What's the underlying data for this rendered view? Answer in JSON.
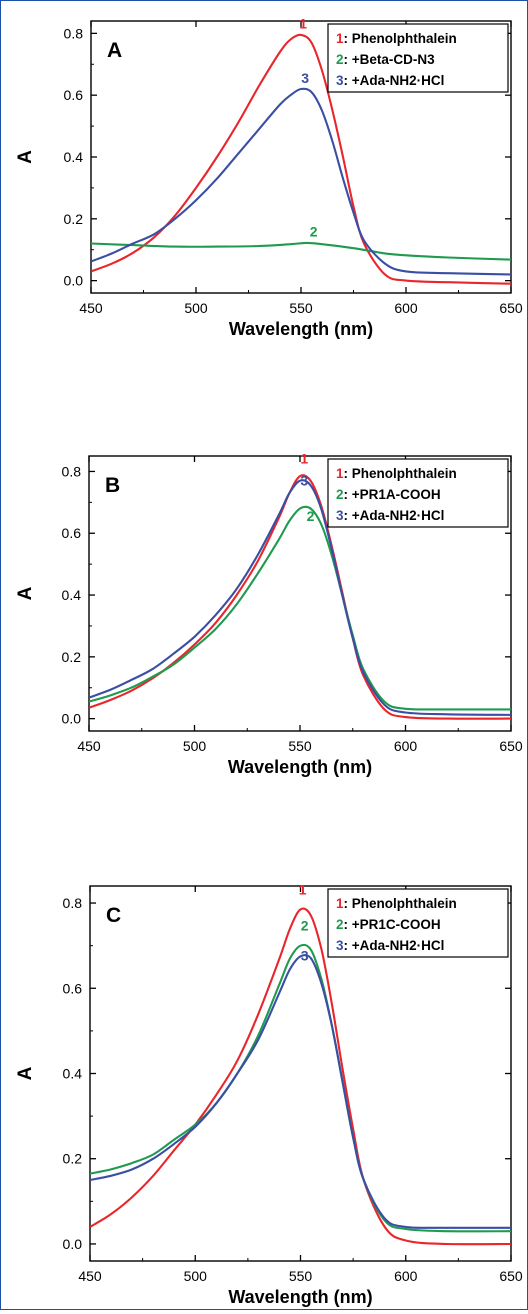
{
  "chart_data": [
    {
      "type": "line",
      "panel_label": "A",
      "xlabel": "Wavelength (nm)",
      "ylabel": "A",
      "xlim": [
        450,
        650
      ],
      "ylim": [
        -0.04,
        0.84
      ],
      "x_ticks": [
        450,
        500,
        550,
        600,
        650
      ],
      "y_ticks": [
        0.0,
        0.2,
        0.4,
        0.6,
        0.8
      ],
      "y_tick_labels": [
        "0.0",
        "0.2",
        "0.4",
        "0.6",
        "0.8"
      ],
      "legend_position": "top-right",
      "series": [
        {
          "name": "Phenolphthalein",
          "number": "1",
          "color": "#e8262b",
          "x": [
            450,
            460,
            470,
            480,
            490,
            500,
            510,
            520,
            530,
            540,
            545,
            550,
            555,
            560,
            565,
            570,
            575,
            580,
            590,
            600,
            620,
            650
          ],
          "y": [
            0.03,
            0.055,
            0.09,
            0.14,
            0.21,
            0.3,
            0.4,
            0.51,
            0.63,
            0.74,
            0.78,
            0.795,
            0.77,
            0.68,
            0.55,
            0.4,
            0.24,
            0.12,
            0.02,
            0.0,
            -0.005,
            -0.01
          ]
        },
        {
          "name": "+Beta-CD-N3",
          "number": "2",
          "color": "#1f9a4f",
          "x": [
            450,
            470,
            490,
            510,
            530,
            545,
            553,
            560,
            575,
            590,
            600,
            620,
            650
          ],
          "y": [
            0.12,
            0.115,
            0.11,
            0.11,
            0.112,
            0.118,
            0.122,
            0.118,
            0.105,
            0.088,
            0.082,
            0.075,
            0.068
          ]
        },
        {
          "name": "+Ada-NH2·HCl",
          "number": "3",
          "color": "#3a4fa3",
          "x": [
            450,
            460,
            470,
            480,
            490,
            500,
            510,
            520,
            530,
            540,
            545,
            550,
            555,
            560,
            565,
            570,
            575,
            580,
            590,
            600,
            620,
            650
          ],
          "y": [
            0.062,
            0.088,
            0.12,
            0.15,
            0.2,
            0.26,
            0.33,
            0.41,
            0.49,
            0.57,
            0.6,
            0.62,
            0.61,
            0.55,
            0.45,
            0.33,
            0.22,
            0.13,
            0.055,
            0.03,
            0.024,
            0.02
          ]
        }
      ],
      "curve_labels": [
        {
          "text": "1",
          "x": 551,
          "y": 0.815
        },
        {
          "text": "2",
          "x": 556,
          "y": 0.143
        },
        {
          "text": "3",
          "x": 552,
          "y": 0.64
        }
      ]
    },
    {
      "type": "line",
      "panel_label": "B",
      "xlabel": "Wavelength (nm)",
      "ylabel": "A",
      "xlim": [
        450,
        650
      ],
      "ylim": [
        -0.04,
        0.85
      ],
      "x_ticks": [
        450,
        500,
        550,
        600,
        650
      ],
      "y_ticks": [
        0.0,
        0.2,
        0.4,
        0.6,
        0.8
      ],
      "y_tick_labels": [
        "0.0",
        "0.2",
        "0.4",
        "0.6",
        "0.8"
      ],
      "legend_position": "top-right",
      "series": [
        {
          "name": "Phenolphthalein",
          "number": "1",
          "color": "#e8262b",
          "x": [
            450,
            460,
            470,
            480,
            490,
            500,
            510,
            520,
            530,
            540,
            545,
            550,
            555,
            560,
            565,
            570,
            575,
            580,
            590,
            600,
            620,
            650
          ],
          "y": [
            0.035,
            0.06,
            0.09,
            0.13,
            0.18,
            0.24,
            0.31,
            0.4,
            0.51,
            0.65,
            0.73,
            0.785,
            0.77,
            0.69,
            0.56,
            0.41,
            0.26,
            0.14,
            0.03,
            0.005,
            0.0,
            0.0
          ]
        },
        {
          "name": "+PR1A-COOH",
          "number": "2",
          "color": "#1f9a4f",
          "x": [
            450,
            460,
            470,
            480,
            490,
            500,
            510,
            520,
            530,
            540,
            545,
            550,
            555,
            560,
            565,
            570,
            575,
            580,
            590,
            600,
            620,
            650
          ],
          "y": [
            0.055,
            0.075,
            0.1,
            0.135,
            0.175,
            0.23,
            0.29,
            0.37,
            0.47,
            0.58,
            0.64,
            0.68,
            0.68,
            0.63,
            0.53,
            0.4,
            0.27,
            0.16,
            0.055,
            0.032,
            0.03,
            0.03
          ]
        },
        {
          "name": "+Ada-NH2·HCl",
          "number": "3",
          "color": "#3a4fa3",
          "x": [
            450,
            460,
            470,
            480,
            490,
            500,
            510,
            520,
            530,
            540,
            545,
            550,
            555,
            560,
            565,
            570,
            575,
            580,
            590,
            600,
            620,
            650
          ],
          "y": [
            0.068,
            0.093,
            0.125,
            0.16,
            0.21,
            0.265,
            0.335,
            0.42,
            0.53,
            0.66,
            0.73,
            0.77,
            0.755,
            0.68,
            0.55,
            0.4,
            0.26,
            0.15,
            0.045,
            0.02,
            0.014,
            0.012
          ]
        }
      ],
      "curve_labels": [
        {
          "text": "1",
          "x": 552,
          "y": 0.825
        },
        {
          "text": "3",
          "x": 552,
          "y": 0.755
        },
        {
          "text": "2",
          "x": 555,
          "y": 0.64
        }
      ]
    },
    {
      "type": "line",
      "panel_label": "C",
      "xlabel": "Wavelength (nm)",
      "ylabel": "A",
      "xlim": [
        450,
        650
      ],
      "ylim": [
        -0.04,
        0.84
      ],
      "x_ticks": [
        450,
        500,
        550,
        600,
        650
      ],
      "y_ticks": [
        0.0,
        0.2,
        0.4,
        0.6,
        0.8
      ],
      "y_tick_labels": [
        "0.0",
        "0.2",
        "0.4",
        "0.6",
        "0.8"
      ],
      "legend_position": "top-right",
      "series": [
        {
          "name": "Phenolphthalein",
          "number": "1",
          "color": "#e8262b",
          "x": [
            450,
            460,
            470,
            480,
            490,
            500,
            510,
            520,
            530,
            540,
            545,
            550,
            555,
            560,
            565,
            570,
            575,
            580,
            590,
            600,
            620,
            650
          ],
          "y": [
            0.04,
            0.07,
            0.11,
            0.16,
            0.22,
            0.28,
            0.35,
            0.43,
            0.54,
            0.67,
            0.74,
            0.785,
            0.77,
            0.69,
            0.56,
            0.41,
            0.27,
            0.15,
            0.04,
            0.008,
            0.0,
            0.0
          ]
        },
        {
          "name": "+PR1C-COOH",
          "number": "2",
          "color": "#1f9a4f",
          "x": [
            450,
            460,
            470,
            480,
            490,
            500,
            510,
            520,
            530,
            540,
            545,
            550,
            555,
            560,
            565,
            570,
            575,
            580,
            590,
            600,
            620,
            650
          ],
          "y": [
            0.165,
            0.175,
            0.19,
            0.21,
            0.245,
            0.28,
            0.33,
            0.4,
            0.49,
            0.61,
            0.67,
            0.7,
            0.69,
            0.62,
            0.51,
            0.38,
            0.25,
            0.15,
            0.055,
            0.035,
            0.03,
            0.03
          ]
        },
        {
          "name": "+Ada-NH2·HCl",
          "number": "3",
          "color": "#3a4fa3",
          "x": [
            450,
            460,
            470,
            480,
            490,
            500,
            510,
            520,
            530,
            540,
            545,
            550,
            555,
            560,
            565,
            570,
            575,
            580,
            590,
            600,
            620,
            650
          ],
          "y": [
            0.15,
            0.16,
            0.175,
            0.2,
            0.235,
            0.275,
            0.33,
            0.4,
            0.48,
            0.59,
            0.645,
            0.675,
            0.67,
            0.61,
            0.51,
            0.38,
            0.25,
            0.15,
            0.06,
            0.04,
            0.038,
            0.038
          ]
        }
      ],
      "curve_labels": [
        {
          "text": "1",
          "x": 551,
          "y": 0.82
        },
        {
          "text": "2",
          "x": 552,
          "y": 0.735
        },
        {
          "text": "3",
          "x": 552,
          "y": 0.665
        }
      ]
    }
  ]
}
